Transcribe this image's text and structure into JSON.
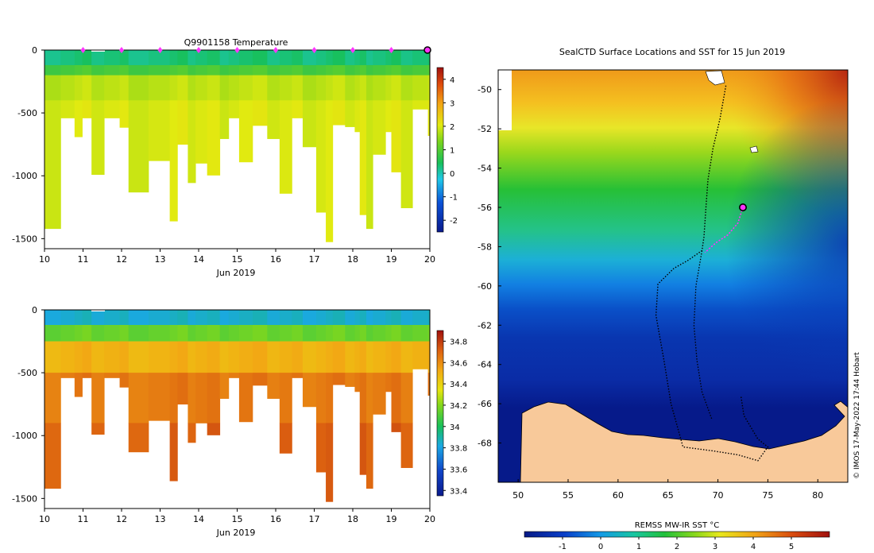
{
  "chart_data": [
    {
      "type": "heatmap",
      "id": "temperature-section",
      "title": "Q9901158  Temperature",
      "xlabel": "Jun 2019",
      "ylabel": "",
      "xlim": [
        10,
        20
      ],
      "ylim": [
        -1580,
        0
      ],
      "x_ticks": [
        "10",
        "11",
        "12",
        "13",
        "14",
        "15",
        "16",
        "17",
        "18",
        "19",
        "20"
      ],
      "y_ticks": [
        0,
        -500,
        -1000,
        -1500
      ],
      "y_tick_labels": [
        "0",
        "-500",
        "-1000",
        "-1500"
      ],
      "colorbar": {
        "min": -2.5,
        "max": 4.5,
        "ticks": [
          4,
          3,
          2,
          1,
          0,
          -1,
          -2
        ],
        "tick_labels": [
          "4",
          "3",
          "2",
          "1",
          "0",
          "-1",
          "-2"
        ]
      },
      "surface_markers_x": [
        11,
        12,
        13,
        14,
        15,
        16,
        17,
        18,
        19
      ],
      "current_position_x": 20,
      "layers": [
        {
          "from_depth": 0,
          "to_depth": 120,
          "value": 0.3
        },
        {
          "from_depth": 120,
          "to_depth": 200,
          "value": 0.9
        },
        {
          "from_depth": 200,
          "to_depth": 400,
          "value": 1.8
        },
        {
          "from_depth": 400,
          "to_depth": 1600,
          "value": 2.0
        }
      ]
    },
    {
      "type": "heatmap",
      "id": "salinity-section",
      "title": "",
      "xlabel": "Jun 2019",
      "ylabel": "",
      "xlim": [
        10,
        20
      ],
      "ylim": [
        -1580,
        0
      ],
      "x_ticks": [
        "10",
        "11",
        "12",
        "13",
        "14",
        "15",
        "16",
        "17",
        "18",
        "19",
        "20"
      ],
      "y_ticks": [
        0,
        -500,
        -1000,
        -1500
      ],
      "y_tick_labels": [
        "0",
        "-500",
        "-1000",
        "-1500"
      ],
      "colorbar": {
        "min": 33.35,
        "max": 34.9,
        "ticks": [
          34.8,
          34.6,
          34.4,
          34.2,
          34,
          33.8,
          33.6,
          33.4
        ],
        "tick_labels": [
          "34.8",
          "34.6",
          "34.4",
          "34.2",
          "34",
          "33.8",
          "33.6",
          "33.4"
        ]
      },
      "layers": [
        {
          "from_depth": 0,
          "to_depth": 120,
          "value": 33.85
        },
        {
          "from_depth": 120,
          "to_depth": 250,
          "value": 34.15
        },
        {
          "from_depth": 250,
          "to_depth": 500,
          "value": 34.5
        },
        {
          "from_depth": 500,
          "to_depth": 900,
          "value": 34.65
        },
        {
          "from_depth": 900,
          "to_depth": 1600,
          "value": 34.72
        }
      ]
    },
    {
      "type": "map",
      "id": "sst-map",
      "title": "SealCTD Surface Locations and SST for 15 Jun 2019",
      "xlim": [
        48,
        83
      ],
      "ylim": [
        -70,
        -49
      ],
      "x_ticks": [
        50,
        55,
        60,
        65,
        70,
        75,
        80
      ],
      "x_tick_labels": [
        "50",
        "55",
        "60",
        "65",
        "70",
        "75",
        "80"
      ],
      "y_ticks": [
        -50,
        -52,
        -54,
        -56,
        -58,
        -60,
        -62,
        -64,
        -66,
        -68
      ],
      "y_tick_labels": [
        "-50",
        "-52",
        "-54",
        "-56",
        "-58",
        "-60",
        "-62",
        "-64",
        "-66",
        "-68"
      ],
      "colorbar_label": "REMSS MW-IR SST °C",
      "colorbar": {
        "min": -2,
        "max": 6,
        "ticks": [
          -1,
          0,
          1,
          2,
          3,
          4,
          5
        ],
        "tick_labels": [
          "-1",
          "0",
          "1",
          "2",
          "3",
          "4",
          "5"
        ]
      },
      "current_location": {
        "lon": 72.5,
        "lat": -56
      },
      "recent_track": [
        [
          72.5,
          -56
        ],
        [
          72.0,
          -56.8
        ],
        [
          71.0,
          -57.4
        ],
        [
          69.8,
          -57.8
        ],
        [
          68.7,
          -58.3
        ]
      ],
      "full_track": [
        [
          70.8,
          -49.8
        ],
        [
          70.2,
          -51.5
        ],
        [
          69.5,
          -53.0
        ],
        [
          69.0,
          -54.6
        ],
        [
          68.8,
          -56.0
        ],
        [
          68.6,
          -57.5
        ],
        [
          68.4,
          -58.2
        ],
        [
          67.0,
          -58.7
        ],
        [
          65.6,
          -59.1
        ],
        [
          64.0,
          -59.9
        ],
        [
          63.8,
          -61.5
        ],
        [
          64.6,
          -63.8
        ],
        [
          65.3,
          -66.0
        ],
        [
          66.5,
          -68.2
        ],
        [
          69.5,
          -68.4
        ],
        [
          72.0,
          -68.6
        ],
        [
          74.0,
          -68.9
        ],
        [
          75.0,
          -68.2
        ],
        [
          74.0,
          -67.8
        ],
        [
          72.6,
          -66.6
        ],
        [
          72.3,
          -65.6
        ]
      ],
      "return_track": [
        [
          68.4,
          -58.2
        ],
        [
          67.8,
          -60.0
        ],
        [
          67.6,
          -62.0
        ],
        [
          67.9,
          -63.8
        ],
        [
          68.4,
          -65.4
        ],
        [
          69.4,
          -66.8
        ]
      ]
    }
  ],
  "credit": "© IMOS 17-May-2022 17:44 Hobart"
}
